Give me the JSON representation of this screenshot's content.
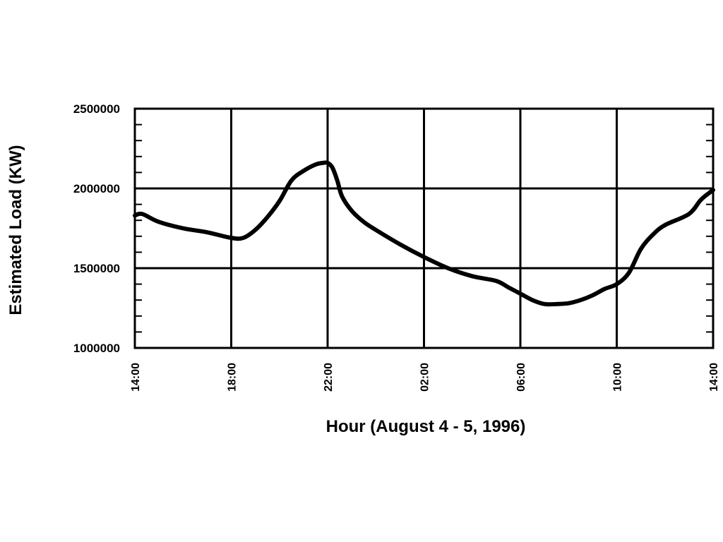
{
  "chart_data": {
    "type": "line",
    "title": "",
    "xlabel": "Hour (August 4 - 5, 1996)",
    "ylabel": "Estimated Load (KW)",
    "ylim": [
      1000000,
      2500000
    ],
    "yticks": [
      1000000,
      1500000,
      2000000,
      2500000
    ],
    "ytick_labels": [
      "1000000",
      "1500000",
      "2000000",
      "2500000"
    ],
    "xlim": [
      0,
      24
    ],
    "xticks": [
      0,
      4,
      8,
      12,
      16,
      20,
      24
    ],
    "xtick_labels": [
      "14:00",
      "18:00",
      "22:00",
      "02:00",
      "06:00",
      "10:00",
      "14:00"
    ],
    "grid": true,
    "colors": {
      "line": "#000000",
      "grid": "#000000",
      "background": "#ffffff"
    },
    "series": [
      {
        "name": "Estimated Load",
        "x": [
          0,
          0.3,
          1,
          2,
          3,
          4,
          4.5,
          5,
          5.5,
          6,
          6.5,
          7,
          7.5,
          7.8,
          8,
          8.2,
          8.4,
          8.6,
          9,
          9.5,
          10,
          11,
          12,
          13,
          14,
          15,
          15.5,
          16,
          16.5,
          17,
          17.5,
          18,
          18.5,
          19,
          19.5,
          20,
          20.5,
          21,
          21.5,
          22,
          23,
          23.5,
          24
        ],
        "y": [
          1830000,
          1840000,
          1790000,
          1750000,
          1725000,
          1690000,
          1690000,
          1740000,
          1820000,
          1920000,
          2050000,
          2110000,
          2150000,
          2160000,
          2160000,
          2130000,
          2050000,
          1950000,
          1860000,
          1790000,
          1740000,
          1650000,
          1570000,
          1500000,
          1450000,
          1420000,
          1380000,
          1340000,
          1300000,
          1275000,
          1275000,
          1280000,
          1300000,
          1330000,
          1370000,
          1400000,
          1470000,
          1620000,
          1710000,
          1770000,
          1840000,
          1930000,
          1990000
        ]
      }
    ]
  }
}
